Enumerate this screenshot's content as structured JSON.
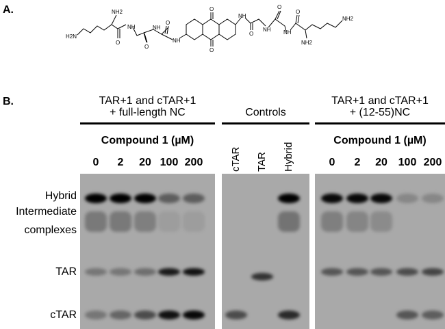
{
  "panel_a": {
    "label": "A.",
    "atoms": {
      "h2n_left": "H2N",
      "nh2_top_left": "NH2",
      "o1": "O",
      "nh1": "NH",
      "o2": "O",
      "nh2": "NH",
      "o3": "O",
      "nh3": "NH",
      "o_top": "O",
      "o_bottom": "O",
      "nh4": "NH",
      "o4": "O",
      "nh5": "NH",
      "o5": "O",
      "nh6": "NH",
      "o6": "O",
      "nh2_bottom_right": "NH2",
      "nh2_right": "NH2"
    }
  },
  "panel_b": {
    "label": "B.",
    "groups": [
      {
        "title_line1": "TAR+1 and cTAR+1",
        "title_line2": "+ full-length NC",
        "subtitle": "Compound 1 (µM)",
        "lanes": [
          "0",
          "2",
          "20",
          "100",
          "200"
        ]
      },
      {
        "title_line1": "",
        "title_line2": "Controls",
        "subtitle": "",
        "lanes": [
          "cTAR",
          "TAR",
          "Hybrid"
        ]
      },
      {
        "title_line1": "TAR+1 and cTAR+1",
        "title_line2": "+ (12-55)NC",
        "subtitle": "Compound 1 (µM)",
        "lanes": [
          "0",
          "2",
          "20",
          "100",
          "200"
        ]
      }
    ],
    "band_labels": {
      "hybrid": "Hybrid",
      "intermediate_line1": "Intermediate",
      "intermediate_line2": "complexes",
      "tar": "TAR",
      "ctar": "cTAR"
    },
    "band_intensity": {
      "full_length_nc": {
        "hybrid": [
          1,
          1,
          1,
          0.45,
          0.45
        ],
        "intermediate": [
          0.4,
          0.4,
          0.35,
          0.1,
          0.1
        ],
        "tar": [
          0.3,
          0.3,
          0.35,
          0.85,
          0.9
        ],
        "ctar": [
          0.3,
          0.4,
          0.55,
          0.9,
          0.95
        ]
      },
      "controls": {
        "hybrid": [
          0,
          0,
          1
        ],
        "intermediate": [
          0,
          0,
          0.45
        ],
        "tar": [
          0,
          0.7,
          0
        ],
        "ctar": [
          0.55,
          0,
          0.75
        ]
      },
      "nc_12_55": {
        "hybrid": [
          0.95,
          0.95,
          0.95,
          0.2,
          0.2
        ],
        "intermediate": [
          0.35,
          0.3,
          0.25,
          0,
          0
        ],
        "tar": [
          0.5,
          0.5,
          0.5,
          0.55,
          0.6
        ],
        "ctar": [
          0,
          0,
          0,
          0.5,
          0.45
        ]
      }
    }
  }
}
